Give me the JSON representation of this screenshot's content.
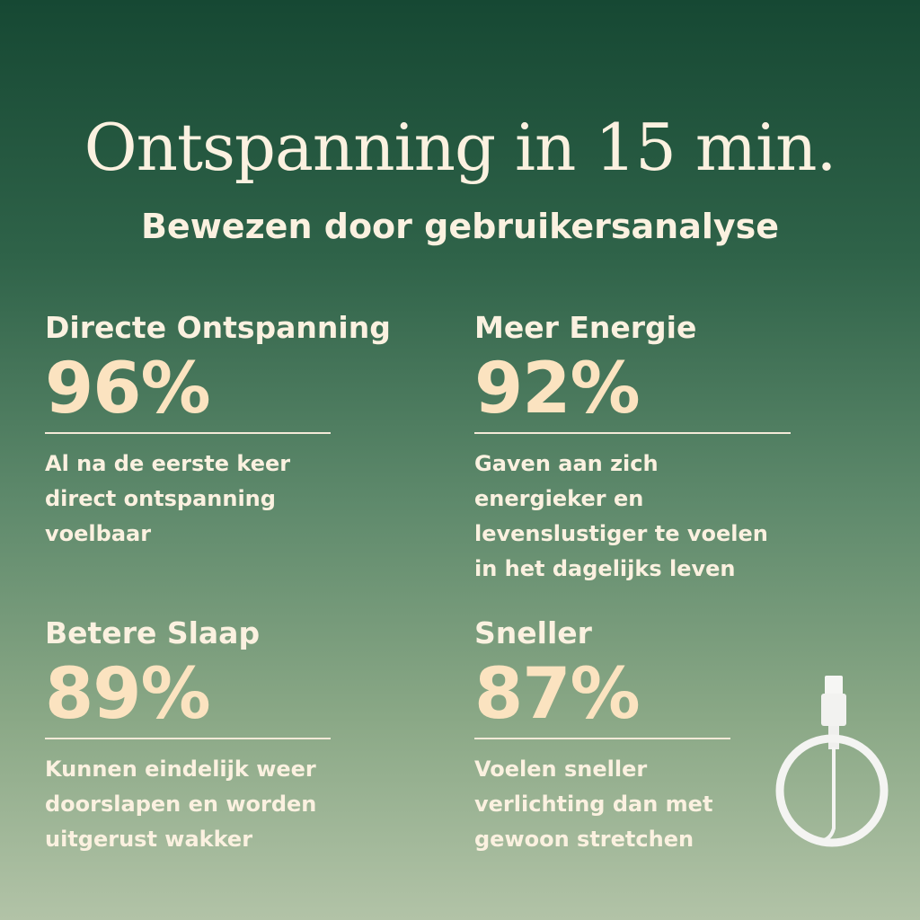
{
  "header": {
    "title": "Ontspanning in 15 min.",
    "subtitle": "Bewezen door gebruikersanalyse"
  },
  "stats": [
    {
      "heading": "Directe Ontspanning",
      "percent": "96%",
      "value": 96,
      "lines": [
        "Al na de eerste keer",
        "direct ontspanning",
        "voelbaar"
      ]
    },
    {
      "heading": "Meer Energie",
      "percent": "92%",
      "value": 92,
      "lines": [
        "Gaven aan zich",
        "energieker en",
        "levenslustiger te voelen",
        "in het dagelijks leven"
      ]
    },
    {
      "heading": "Betere Slaap",
      "percent": "89%",
      "value": 89,
      "lines": [
        "Kunnen eindelijk weer",
        "doorslapen en worden",
        "uitgerust wakker"
      ]
    },
    {
      "heading": "Sneller",
      "percent": "87%",
      "value": 87,
      "lines": [
        "Voelen sneller",
        "verlichting dan met",
        "gewoon stretchen"
      ]
    }
  ],
  "colors": {
    "background_top": "#164833",
    "background_bottom": "#b2c3a7",
    "text": "#fbf1e0",
    "percent": "#fbe3c0"
  },
  "product_image": "white-cable-loop-device"
}
